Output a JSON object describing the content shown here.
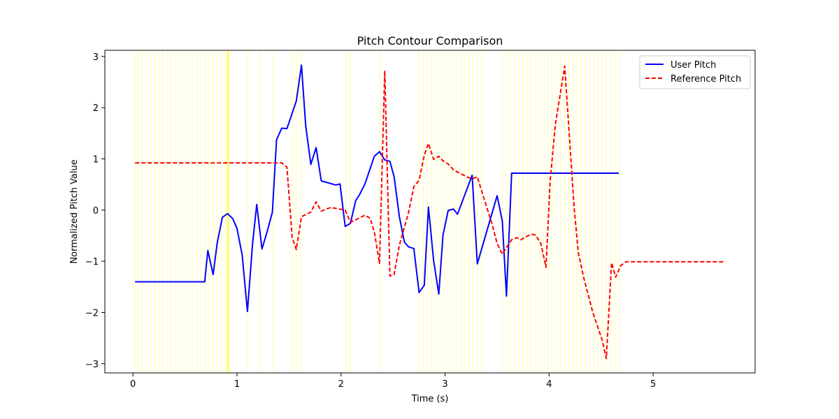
{
  "chart_data": {
    "type": "line",
    "title": "Pitch Contour Comparison",
    "xlabel": "Time (s)",
    "ylabel": "Normalized Pitch Value",
    "xlim": [
      -0.27,
      5.98
    ],
    "ylim": [
      -3.18,
      3.12
    ],
    "xticks": [
      0,
      1,
      2,
      3,
      4,
      5
    ],
    "yticks": [
      -3,
      -2,
      -1,
      0,
      1,
      2,
      3
    ],
    "grid": false,
    "legend": "top-right",
    "colors": {
      "user": "#0000ff",
      "reference": "#ff0000",
      "highlight": "#ffff00"
    },
    "highlight_lines": {
      "x": [
        0.02,
        0.05,
        0.09,
        0.13,
        0.17,
        0.21,
        0.25,
        0.29,
        0.33,
        0.37,
        0.41,
        0.45,
        0.49,
        0.53,
        0.57,
        0.61,
        0.65,
        0.69,
        0.73,
        0.77,
        0.81,
        0.85,
        0.89,
        0.91,
        0.92,
        1.1,
        1.22,
        1.34,
        1.53,
        1.57,
        1.61,
        2.05,
        2.09,
        2.37,
        2.75,
        2.79,
        2.83,
        2.87,
        2.91,
        2.95,
        2.99,
        3.03,
        3.07,
        3.11,
        3.15,
        3.19,
        3.23,
        3.27,
        3.31,
        3.35,
        3.55,
        3.59,
        3.63,
        3.67,
        3.71,
        3.75,
        3.79,
        3.83,
        3.87,
        3.91,
        3.95,
        3.99,
        4.03,
        4.07,
        4.11,
        4.15,
        4.19,
        4.23,
        4.27,
        4.31,
        4.35,
        4.39,
        4.43,
        4.47,
        4.51,
        4.55,
        4.59,
        4.63,
        4.67
      ],
      "strong": [
        0.91,
        0.92
      ]
    },
    "series": [
      {
        "name": "User Pitch",
        "style": "solid",
        "x": [
          0.02,
          0.69,
          0.72,
          0.77,
          0.81,
          0.86,
          0.91,
          0.96,
          1.0,
          1.05,
          1.1,
          1.15,
          1.19,
          1.24,
          1.29,
          1.34,
          1.38,
          1.43,
          1.48,
          1.57,
          1.62,
          1.66,
          1.71,
          1.76,
          1.81,
          1.95,
          1.99,
          2.04,
          2.09,
          2.14,
          2.18,
          2.23,
          2.32,
          2.37,
          2.42,
          2.47,
          2.51,
          2.56,
          2.61,
          2.65,
          2.7,
          2.75,
          2.8,
          2.84,
          2.89,
          2.94,
          2.98,
          3.03,
          3.08,
          3.12,
          3.26,
          3.31,
          3.5,
          3.55,
          3.59,
          3.64,
          4.67
        ],
        "y": [
          -1.4,
          -1.4,
          -0.79,
          -1.26,
          -0.64,
          -0.14,
          -0.07,
          -0.17,
          -0.36,
          -0.88,
          -1.98,
          -0.65,
          0.11,
          -0.76,
          -0.42,
          -0.04,
          1.37,
          1.6,
          1.59,
          2.13,
          2.83,
          1.65,
          0.89,
          1.22,
          0.57,
          0.49,
          0.51,
          -0.32,
          -0.26,
          0.18,
          0.31,
          0.51,
          1.05,
          1.14,
          0.98,
          0.95,
          0.65,
          -0.12,
          -0.63,
          -0.72,
          -0.75,
          -1.61,
          -1.47,
          0.06,
          -0.99,
          -1.64,
          -0.49,
          -0.01,
          0.02,
          -0.08,
          0.68,
          -1.05,
          0.28,
          -0.21,
          -1.68,
          0.72,
          0.72
        ]
      },
      {
        "name": "Reference Pitch",
        "style": "dashed",
        "x": [
          0.02,
          1.38,
          1.43,
          1.48,
          1.53,
          1.57,
          1.62,
          1.71,
          1.76,
          1.81,
          1.9,
          2.04,
          2.09,
          2.18,
          2.23,
          2.28,
          2.32,
          2.37,
          2.42,
          2.47,
          2.51,
          2.56,
          2.65,
          2.7,
          2.75,
          2.8,
          2.84,
          2.89,
          2.94,
          2.98,
          3.03,
          3.08,
          3.12,
          3.17,
          3.22,
          3.26,
          3.31,
          3.36,
          3.45,
          3.5,
          3.55,
          3.59,
          3.64,
          3.69,
          3.73,
          3.78,
          3.83,
          3.87,
          3.92,
          3.97,
          4.01,
          4.06,
          4.15,
          4.24,
          4.28,
          4.33,
          4.42,
          4.51,
          4.55,
          4.6,
          4.64,
          4.69,
          4.74,
          4.8,
          5.68
        ],
        "y": [
          0.92,
          0.92,
          0.92,
          0.84,
          -0.53,
          -0.77,
          -0.13,
          -0.04,
          0.16,
          -0.02,
          0.05,
          0.0,
          -0.24,
          -0.15,
          -0.1,
          -0.16,
          -0.43,
          -1.04,
          2.72,
          -1.29,
          -1.26,
          -0.69,
          -0.04,
          0.46,
          0.58,
          1.07,
          1.3,
          0.99,
          1.05,
          0.96,
          0.9,
          0.79,
          0.74,
          0.69,
          0.64,
          0.61,
          0.65,
          0.32,
          -0.26,
          -0.65,
          -0.86,
          -0.73,
          -0.58,
          -0.54,
          -0.58,
          -0.52,
          -0.47,
          -0.49,
          -0.65,
          -1.12,
          0.58,
          1.67,
          2.81,
          0.06,
          -0.82,
          -1.3,
          -2.0,
          -2.54,
          -2.9,
          -1.03,
          -1.31,
          -1.08,
          -1.01,
          -1.01,
          -1.01
        ]
      }
    ]
  }
}
